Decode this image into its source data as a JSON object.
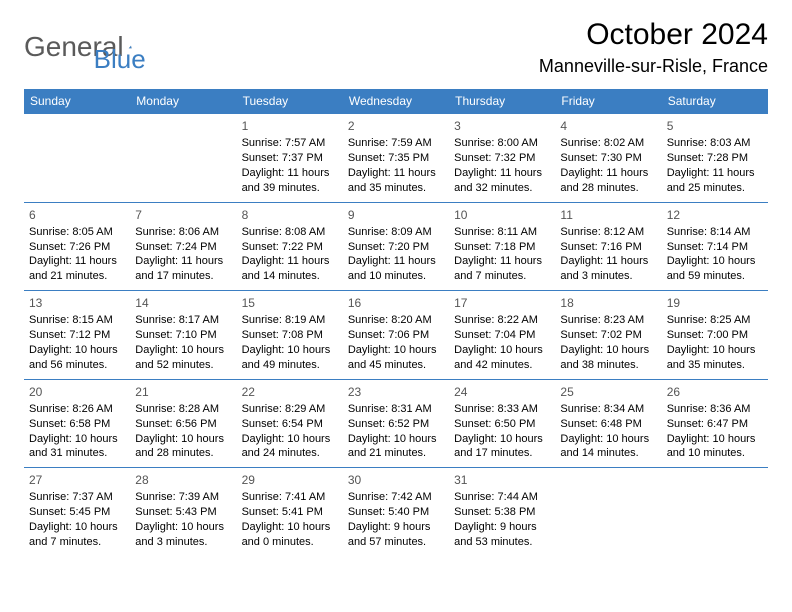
{
  "brand": {
    "part1": "General",
    "part2": "Blue"
  },
  "title": "October 2024",
  "location": "Manneville-sur-Risle, France",
  "colors": {
    "accent": "#3b7ec2",
    "header_text": "#ffffff",
    "text": "#000000",
    "muted": "#5a5a5a",
    "background": "#ffffff"
  },
  "daysOfWeek": [
    "Sunday",
    "Monday",
    "Tuesday",
    "Wednesday",
    "Thursday",
    "Friday",
    "Saturday"
  ],
  "calendar": {
    "type": "table",
    "columns": 7,
    "rows": 5,
    "cell_font_size": 11,
    "header_font_size": 12,
    "title_font_size": 30,
    "location_font_size": 18,
    "row_border_color": "#3b7ec2"
  },
  "weeks": [
    [
      null,
      null,
      {
        "n": "1",
        "sunrise": "Sunrise: 7:57 AM",
        "sunset": "Sunset: 7:37 PM",
        "daylight": "Daylight: 11 hours and 39 minutes."
      },
      {
        "n": "2",
        "sunrise": "Sunrise: 7:59 AM",
        "sunset": "Sunset: 7:35 PM",
        "daylight": "Daylight: 11 hours and 35 minutes."
      },
      {
        "n": "3",
        "sunrise": "Sunrise: 8:00 AM",
        "sunset": "Sunset: 7:32 PM",
        "daylight": "Daylight: 11 hours and 32 minutes."
      },
      {
        "n": "4",
        "sunrise": "Sunrise: 8:02 AM",
        "sunset": "Sunset: 7:30 PM",
        "daylight": "Daylight: 11 hours and 28 minutes."
      },
      {
        "n": "5",
        "sunrise": "Sunrise: 8:03 AM",
        "sunset": "Sunset: 7:28 PM",
        "daylight": "Daylight: 11 hours and 25 minutes."
      }
    ],
    [
      {
        "n": "6",
        "sunrise": "Sunrise: 8:05 AM",
        "sunset": "Sunset: 7:26 PM",
        "daylight": "Daylight: 11 hours and 21 minutes."
      },
      {
        "n": "7",
        "sunrise": "Sunrise: 8:06 AM",
        "sunset": "Sunset: 7:24 PM",
        "daylight": "Daylight: 11 hours and 17 minutes."
      },
      {
        "n": "8",
        "sunrise": "Sunrise: 8:08 AM",
        "sunset": "Sunset: 7:22 PM",
        "daylight": "Daylight: 11 hours and 14 minutes."
      },
      {
        "n": "9",
        "sunrise": "Sunrise: 8:09 AM",
        "sunset": "Sunset: 7:20 PM",
        "daylight": "Daylight: 11 hours and 10 minutes."
      },
      {
        "n": "10",
        "sunrise": "Sunrise: 8:11 AM",
        "sunset": "Sunset: 7:18 PM",
        "daylight": "Daylight: 11 hours and 7 minutes."
      },
      {
        "n": "11",
        "sunrise": "Sunrise: 8:12 AM",
        "sunset": "Sunset: 7:16 PM",
        "daylight": "Daylight: 11 hours and 3 minutes."
      },
      {
        "n": "12",
        "sunrise": "Sunrise: 8:14 AM",
        "sunset": "Sunset: 7:14 PM",
        "daylight": "Daylight: 10 hours and 59 minutes."
      }
    ],
    [
      {
        "n": "13",
        "sunrise": "Sunrise: 8:15 AM",
        "sunset": "Sunset: 7:12 PM",
        "daylight": "Daylight: 10 hours and 56 minutes."
      },
      {
        "n": "14",
        "sunrise": "Sunrise: 8:17 AM",
        "sunset": "Sunset: 7:10 PM",
        "daylight": "Daylight: 10 hours and 52 minutes."
      },
      {
        "n": "15",
        "sunrise": "Sunrise: 8:19 AM",
        "sunset": "Sunset: 7:08 PM",
        "daylight": "Daylight: 10 hours and 49 minutes."
      },
      {
        "n": "16",
        "sunrise": "Sunrise: 8:20 AM",
        "sunset": "Sunset: 7:06 PM",
        "daylight": "Daylight: 10 hours and 45 minutes."
      },
      {
        "n": "17",
        "sunrise": "Sunrise: 8:22 AM",
        "sunset": "Sunset: 7:04 PM",
        "daylight": "Daylight: 10 hours and 42 minutes."
      },
      {
        "n": "18",
        "sunrise": "Sunrise: 8:23 AM",
        "sunset": "Sunset: 7:02 PM",
        "daylight": "Daylight: 10 hours and 38 minutes."
      },
      {
        "n": "19",
        "sunrise": "Sunrise: 8:25 AM",
        "sunset": "Sunset: 7:00 PM",
        "daylight": "Daylight: 10 hours and 35 minutes."
      }
    ],
    [
      {
        "n": "20",
        "sunrise": "Sunrise: 8:26 AM",
        "sunset": "Sunset: 6:58 PM",
        "daylight": "Daylight: 10 hours and 31 minutes."
      },
      {
        "n": "21",
        "sunrise": "Sunrise: 8:28 AM",
        "sunset": "Sunset: 6:56 PM",
        "daylight": "Daylight: 10 hours and 28 minutes."
      },
      {
        "n": "22",
        "sunrise": "Sunrise: 8:29 AM",
        "sunset": "Sunset: 6:54 PM",
        "daylight": "Daylight: 10 hours and 24 minutes."
      },
      {
        "n": "23",
        "sunrise": "Sunrise: 8:31 AM",
        "sunset": "Sunset: 6:52 PM",
        "daylight": "Daylight: 10 hours and 21 minutes."
      },
      {
        "n": "24",
        "sunrise": "Sunrise: 8:33 AM",
        "sunset": "Sunset: 6:50 PM",
        "daylight": "Daylight: 10 hours and 17 minutes."
      },
      {
        "n": "25",
        "sunrise": "Sunrise: 8:34 AM",
        "sunset": "Sunset: 6:48 PM",
        "daylight": "Daylight: 10 hours and 14 minutes."
      },
      {
        "n": "26",
        "sunrise": "Sunrise: 8:36 AM",
        "sunset": "Sunset: 6:47 PM",
        "daylight": "Daylight: 10 hours and 10 minutes."
      }
    ],
    [
      {
        "n": "27",
        "sunrise": "Sunrise: 7:37 AM",
        "sunset": "Sunset: 5:45 PM",
        "daylight": "Daylight: 10 hours and 7 minutes."
      },
      {
        "n": "28",
        "sunrise": "Sunrise: 7:39 AM",
        "sunset": "Sunset: 5:43 PM",
        "daylight": "Daylight: 10 hours and 3 minutes."
      },
      {
        "n": "29",
        "sunrise": "Sunrise: 7:41 AM",
        "sunset": "Sunset: 5:41 PM",
        "daylight": "Daylight: 10 hours and 0 minutes."
      },
      {
        "n": "30",
        "sunrise": "Sunrise: 7:42 AM",
        "sunset": "Sunset: 5:40 PM",
        "daylight": "Daylight: 9 hours and 57 minutes."
      },
      {
        "n": "31",
        "sunrise": "Sunrise: 7:44 AM",
        "sunset": "Sunset: 5:38 PM",
        "daylight": "Daylight: 9 hours and 53 minutes."
      },
      null,
      null
    ]
  ]
}
